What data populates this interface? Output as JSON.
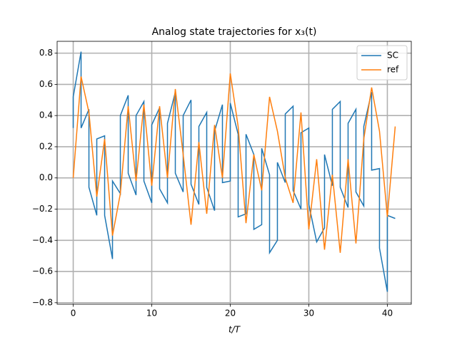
{
  "chart_data": {
    "type": "line",
    "title": "Analog state trajectories for x₃(t)",
    "x_label": "t/T",
    "xlim": [
      -2.05,
      43.05
    ],
    "ylim": [
      -0.81,
      0.876
    ],
    "xticks": [
      0,
      10,
      20,
      30,
      40
    ],
    "yticks": [
      {
        "value": -0.8,
        "label": "−0.8"
      },
      {
        "value": -0.6,
        "label": "−0.6"
      },
      {
        "value": -0.4,
        "label": "−0.4"
      },
      {
        "value": -0.2,
        "label": "−0.2"
      },
      {
        "value": 0,
        "label": "0.0"
      },
      0.2,
      0.4,
      0.6,
      0.8
    ],
    "grid": true,
    "legend": "upper right",
    "series": [
      {
        "name": "SC",
        "color": "#1f77b4",
        "x": [
          0,
          0,
          1,
          1,
          2,
          2,
          3,
          3,
          4,
          4,
          5,
          5,
          6,
          6,
          7,
          7,
          8,
          8,
          9,
          9,
          10,
          10,
          11,
          11,
          12,
          12,
          13,
          13,
          14,
          14,
          15,
          15,
          16,
          16,
          17,
          17,
          18,
          18,
          19,
          19,
          20,
          20,
          21,
          21,
          22,
          22,
          23,
          23,
          24,
          24,
          25,
          25,
          26,
          26,
          27,
          27,
          28,
          28,
          29,
          29,
          30,
          30,
          31,
          32,
          32,
          33,
          33,
          34,
          34,
          35,
          35,
          36,
          36,
          37,
          37,
          38,
          38,
          39,
          39,
          40,
          40,
          41
        ],
        "values": [
          0.32,
          0.52,
          0.81,
          0.32,
          0.44,
          -0.06,
          -0.24,
          0.25,
          0.27,
          -0.24,
          -0.52,
          -0.02,
          -0.1,
          0.4,
          0.53,
          0.03,
          -0.11,
          0.4,
          0.49,
          -0.02,
          -0.16,
          0.34,
          0.45,
          -0.07,
          -0.16,
          0.35,
          0.55,
          0.03,
          -0.09,
          0.4,
          0.5,
          -0.04,
          -0.17,
          0.33,
          0.42,
          -0.06,
          -0.21,
          0.3,
          0.47,
          -0.03,
          -0.02,
          0.48,
          0.28,
          -0.25,
          -0.23,
          0.28,
          0.15,
          -0.33,
          -0.3,
          0.19,
          0.02,
          -0.48,
          -0.4,
          0.1,
          -0.03,
          0.41,
          0.46,
          -0.08,
          -0.2,
          0.29,
          0.32,
          -0.17,
          -0.41,
          -0.32,
          0.15,
          -0.05,
          0.44,
          0.49,
          -0.06,
          -0.19,
          0.35,
          0.44,
          -0.09,
          -0.18,
          0.33,
          0.55,
          0.05,
          0.06,
          -0.45,
          -0.73,
          -0.24,
          -0.26
        ]
      },
      {
        "name": "ref",
        "color": "#ff7f0e",
        "x": [
          0,
          1,
          2,
          3,
          4,
          5,
          6,
          7,
          8,
          9,
          10,
          11,
          12,
          13,
          14,
          15,
          16,
          17,
          18,
          19,
          20,
          21,
          22,
          23,
          24,
          25,
          26,
          27,
          28,
          29,
          30,
          31,
          32,
          33,
          34,
          35,
          36,
          37,
          38,
          39,
          40,
          41
        ],
        "values": [
          0,
          0.65,
          0.42,
          -0.12,
          0.25,
          -0.37,
          -0.1,
          0.46,
          -0.02,
          0.47,
          -0.05,
          0.46,
          0,
          0.57,
          0.15,
          -0.3,
          0.23,
          -0.23,
          0.34,
          0,
          0.67,
          0.33,
          -0.29,
          0.15,
          -0.08,
          0.52,
          0.3,
          0,
          -0.16,
          0.42,
          -0.33,
          0.12,
          -0.46,
          0.02,
          -0.48,
          0.12,
          -0.42,
          0.25,
          0.58,
          0.3,
          -0.25,
          0.33
        ]
      }
    ]
  }
}
